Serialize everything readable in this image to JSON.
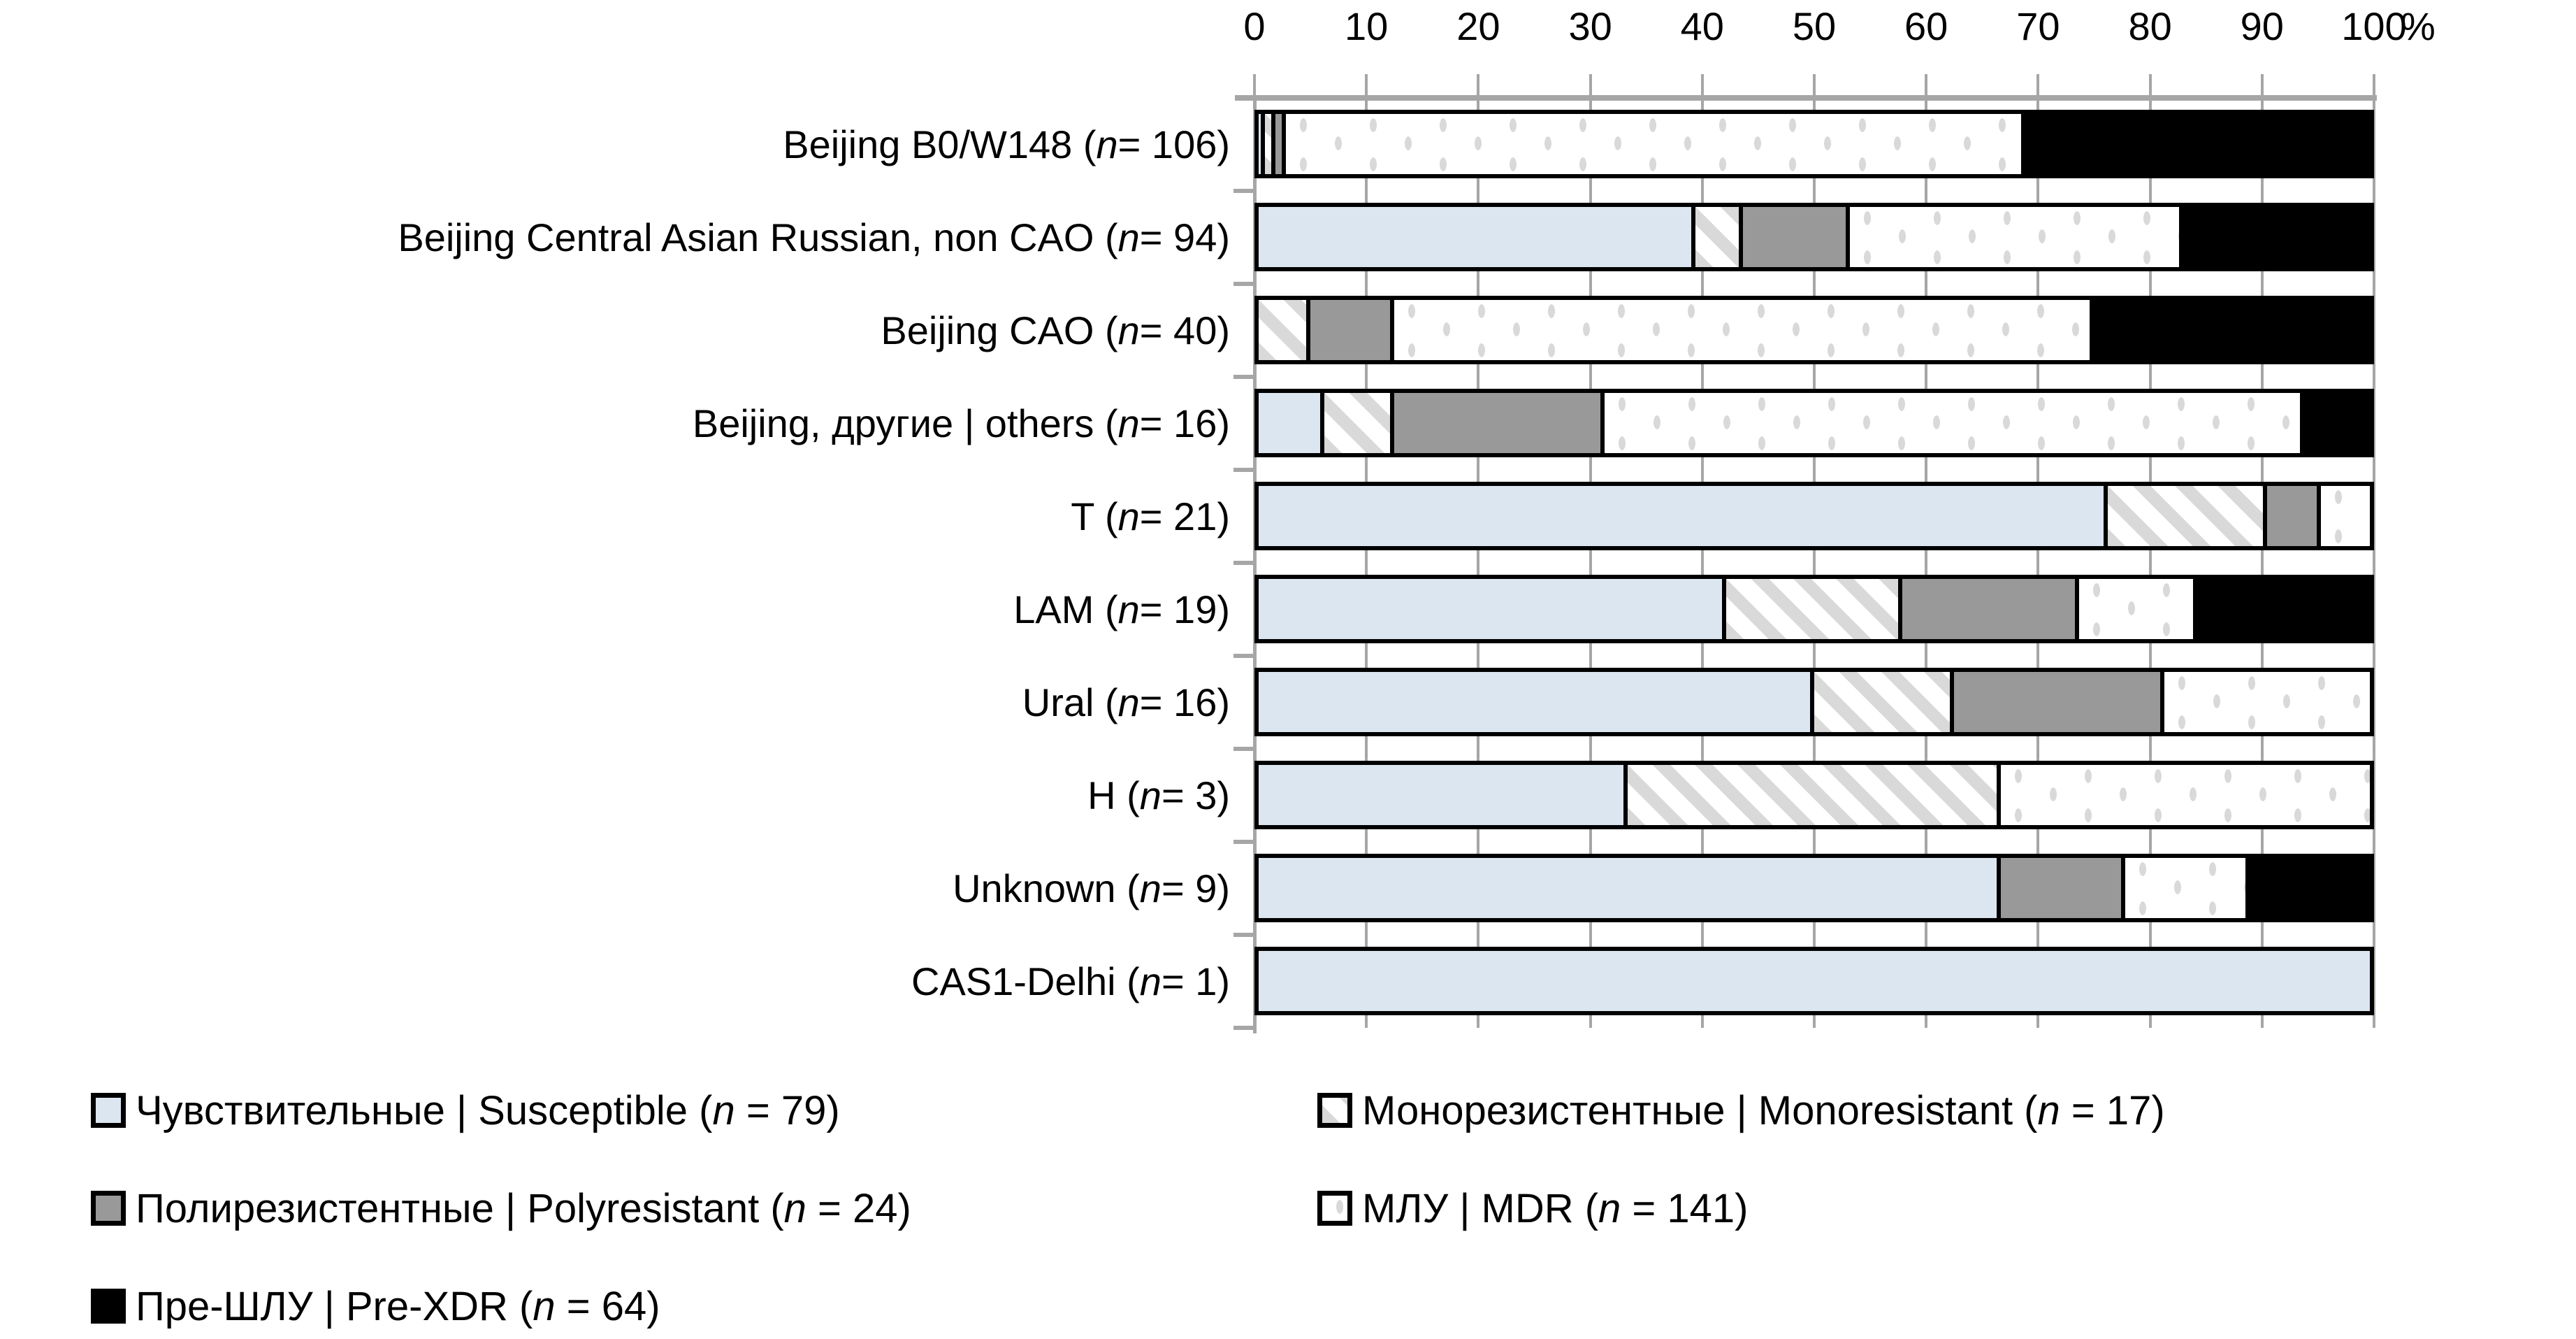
{
  "chart_data": {
    "type": "bar",
    "variant": "horizontal_stacked_100_percent",
    "title": "",
    "x_axis": {
      "position": "top",
      "range": [
        0,
        100
      ],
      "ticks": [
        0,
        10,
        20,
        30,
        40,
        50,
        60,
        70,
        80,
        90,
        100
      ],
      "unit_label": "%",
      "grid": "vertical gridlines at every 10%"
    },
    "value_encoding": "counts per category; segment width = count / n * 100%",
    "categories": [
      {
        "label": "Beijing B0/W148 (n = 106)",
        "n": 106,
        "counts": [
          1,
          1,
          1,
          70,
          33
        ]
      },
      {
        "label": "Beijing Central Asian Russian, non CAO (n = 94)",
        "n": 94,
        "counts": [
          37,
          4,
          9,
          28,
          16
        ]
      },
      {
        "label": "Beijing CAO (n = 40)",
        "n": 40,
        "counts": [
          0,
          2,
          3,
          25,
          10
        ]
      },
      {
        "label": "Beijing, другие | others (n = 16)",
        "n": 16,
        "counts": [
          1,
          1,
          3,
          10,
          1
        ]
      },
      {
        "label": "T (n = 21)",
        "n": 21,
        "counts": [
          16,
          3,
          1,
          1,
          0
        ]
      },
      {
        "label": "LAM (n = 19)",
        "n": 19,
        "counts": [
          8,
          3,
          3,
          2,
          3
        ]
      },
      {
        "label": "Ural (n = 16)",
        "n": 16,
        "counts": [
          8,
          2,
          3,
          3,
          0
        ]
      },
      {
        "label": "H (n = 3)",
        "n": 3,
        "counts": [
          1,
          1,
          0,
          1,
          0
        ]
      },
      {
        "label": "Unknown (n = 9)",
        "n": 9,
        "counts": [
          6,
          0,
          1,
          1,
          1
        ]
      },
      {
        "label": "CAS1-Delhi (n = 1)",
        "n": 1,
        "counts": [
          1,
          0,
          0,
          0,
          0
        ]
      }
    ],
    "series": [
      {
        "name": "Чувствительные | Susceptible",
        "total_n": 79,
        "style": "susceptible"
      },
      {
        "name": "Монорезистентные | Monoresistant",
        "total_n": 17,
        "style": "monoresistant"
      },
      {
        "name": "Полирезистентные | Polyresistant",
        "total_n": 24,
        "style": "polyresistant"
      },
      {
        "name": "МЛУ | MDR",
        "total_n": 141,
        "style": "mdr"
      },
      {
        "name": "Пре-ШЛУ | Pre-XDR",
        "total_n": 64,
        "style": "prexdr"
      }
    ],
    "legend_position": "bottom, two columns plus single item third row"
  },
  "legend": {
    "items": [
      {
        "label": "Чувствительные | Susceptible (n = 79)",
        "style": "susceptible",
        "col": 0,
        "row": 0
      },
      {
        "label": "Монорезистентные | Monoresistant (n = 17)",
        "style": "monoresistant",
        "col": 1,
        "row": 0
      },
      {
        "label": "Полирезистентные | Polyresistant (n = 24)",
        "style": "polyresistant",
        "col": 0,
        "row": 1
      },
      {
        "label": "МЛУ | MDR (n = 141)",
        "style": "mdr",
        "col": 1,
        "row": 1
      },
      {
        "label": "Пре-ШЛУ | Pre-XDR (n = 64)",
        "style": "prexdr",
        "col": 0,
        "row": 2
      }
    ]
  },
  "colors": {
    "susceptible_fill": "#dce6f1",
    "monoresistant_hatch": "#d9d9d9",
    "polyresistant_fill": "#999999",
    "mdr_dot": "#d9d9d9",
    "prexdr_fill": "#000000",
    "segment_border": "#000000",
    "grid": "#a6a6a6",
    "text": "#000000",
    "background": "#ffffff"
  }
}
